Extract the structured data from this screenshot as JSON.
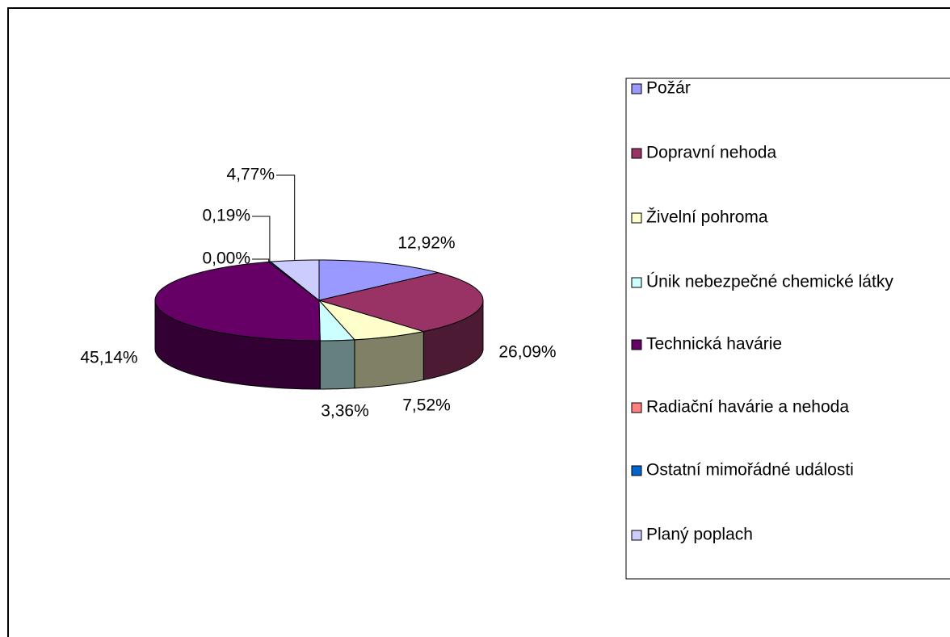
{
  "chart_data": {
    "type": "pie3d",
    "categories": [
      "Požár",
      "Dopravní nehoda",
      "Živelní pohroma",
      "Únik nebezpečné chemické látky",
      "Technická havárie",
      "Radiační havárie a nehoda",
      "Ostatní mimořádné události",
      "Planý poplach"
    ],
    "values": [
      12.92,
      26.09,
      7.52,
      3.36,
      45.14,
      0.0,
      0.19,
      4.77
    ],
    "value_labels": [
      "12,92%",
      "26,09%",
      "7,52%",
      "3,36%",
      "45,14%",
      "0,00%",
      "0,19%",
      "4,77%"
    ],
    "colors": [
      "#9999ff",
      "#993366",
      "#ffffcc",
      "#ccffff",
      "#660066",
      "#ff8080",
      "#0066cc",
      "#ccccff"
    ],
    "legend": "right"
  }
}
